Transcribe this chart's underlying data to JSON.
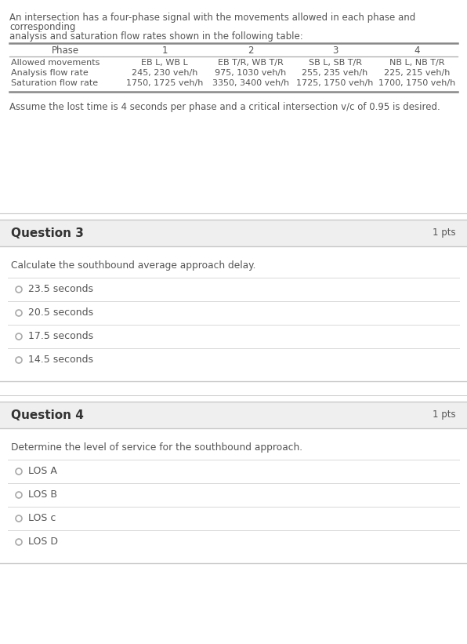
{
  "bg_color": "#ffffff",
  "text_color": "#555555",
  "dark_text": "#333333",
  "intro_line1": "An intersection has a four-phase signal with the movements allowed in each phase and",
  "intro_line2": "corresponding",
  "intro_line3": "analysis and saturation flow rates shown in the following table:",
  "table_col_phase": "Phase",
  "table_col_nums": [
    "1",
    "2",
    "3",
    "4"
  ],
  "table_rows": [
    [
      "Allowed movements",
      "EB L, WB L",
      "EB T/R, WB T/R",
      "SB L, SB T/R",
      "NB L, NB T/R"
    ],
    [
      "Analysis flow rate",
      "245, 230 veh/h",
      "975, 1030 veh/h",
      "255, 235 veh/h",
      "225, 215 veh/h"
    ],
    [
      "Saturation flow rate",
      "1750, 1725 veh/h",
      "3350, 3400 veh/h",
      "1725, 1750 veh/h",
      "1700, 1750 veh/h"
    ]
  ],
  "assume_text": "Assume the lost time is 4 seconds per phase and a critical intersection v/c of 0.95 is desired.",
  "q3_title": "Question 3",
  "q3_pts": "1 pts",
  "q3_question": "Calculate the southbound average approach delay.",
  "q3_options": [
    "23.5 seconds",
    "20.5 seconds",
    "17.5 seconds",
    "14.5 seconds"
  ],
  "q4_title": "Question 4",
  "q4_pts": "1 pts",
  "q4_question": "Determine the level of service for the southbound approach.",
  "q4_options": [
    "LOS A",
    "LOS B",
    "LOS c",
    "LOS D"
  ],
  "section_bg": "#efefef",
  "divider_color": "#d8d8d8",
  "border_color": "#c8c8c8",
  "thick_line_color": "#888888",
  "thin_line_color": "#aaaaaa"
}
